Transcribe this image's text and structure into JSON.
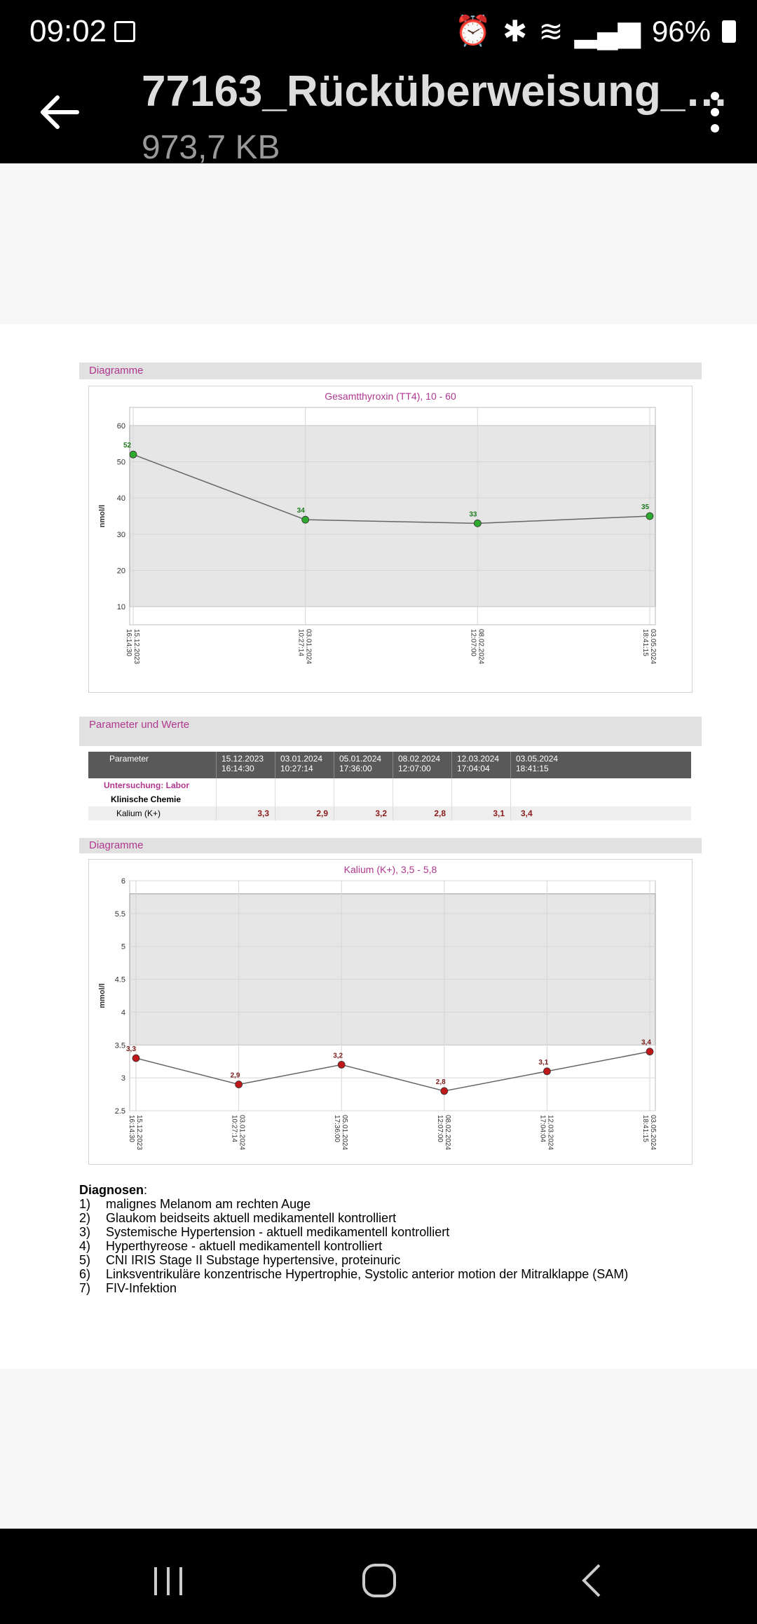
{
  "status_bar": {
    "time": "09:02",
    "battery": "96%"
  },
  "app_bar": {
    "title": "77163_Rücküberweisung_…",
    "size": "973,7 KB"
  },
  "sections": {
    "charts": "Diagramme",
    "params": "Parameter und Werte",
    "charts2": "Diagramme"
  },
  "chart_data": [
    {
      "type": "line",
      "title": "Gesamtthyroxin (TT4), 10 - 60",
      "ylabel": "nmol/l",
      "ylim": [
        5,
        65
      ],
      "yticks": [
        10,
        20,
        30,
        40,
        50,
        60
      ],
      "normal_range": [
        10,
        60
      ],
      "x": [
        "15.12.2023 16:14:30",
        "03.01.2024 10:27:14",
        "08.02.2024 12:07:00",
        "03.05.2024 18:41:15"
      ],
      "xdate": [
        "15.12.2023",
        "03.01.2024",
        "08.02.2024",
        "03.05.2024"
      ],
      "xtime": [
        "16:14:30",
        "10:27:14",
        "12:07:00",
        "18:41:15"
      ],
      "values": [
        52,
        34,
        33,
        35
      ],
      "point_labels": [
        "52",
        "34",
        "33",
        "35"
      ],
      "colors": {
        "point": "#2eaa2e",
        "label": "#1e7a1e"
      }
    },
    {
      "type": "line",
      "title": "Kalium (K+), 3,5 - 5,8",
      "ylabel": "mmol/l",
      "ylim": [
        2.5,
        6
      ],
      "yticks": [
        "2.5",
        "3",
        "3.5",
        "4",
        "4.5",
        "5",
        "5.5",
        "6"
      ],
      "normal_range": [
        3.5,
        5.8
      ],
      "x": [
        "15.12.2023 16:14:30",
        "03.01.2024 10:27:14",
        "05.01.2024 17:36:00",
        "08.02.2024 12:07:00",
        "12.03.2024 17:04:04",
        "03.05.2024 18:41:15"
      ],
      "xdate": [
        "15.12.2023",
        "03.01.2024",
        "05.01.2024",
        "08.02.2024",
        "12.03.2024",
        "03.05.2024"
      ],
      "xtime": [
        "16:14:30",
        "10:27:14",
        "17:36:00",
        "12:07:00",
        "17:04:04",
        "18:41:15"
      ],
      "values": [
        3.3,
        2.9,
        3.2,
        2.8,
        3.1,
        3.4
      ],
      "point_labels": [
        "3,3",
        "2,9",
        "3,2",
        "2,8",
        "3,1",
        "3,4"
      ],
      "colors": {
        "point": "#c0181a",
        "label": "#7a1a1a"
      }
    }
  ],
  "table": {
    "header": "Parameter",
    "columns": [
      {
        "date": "15.12.2023",
        "time": "16:14:30"
      },
      {
        "date": "03.01.2024",
        "time": "10:27:14"
      },
      {
        "date": "05.01.2024",
        "time": "17:36:00"
      },
      {
        "date": "08.02.2024",
        "time": "12:07:00"
      },
      {
        "date": "12.03.2024",
        "time": "17:04:04"
      },
      {
        "date": "03.05.2024",
        "time": "18:41:15"
      }
    ],
    "exam": "Untersuchung: Labor",
    "group": "Klinische Chemie",
    "row_label": "Kalium (K+)",
    "values": [
      "3,3",
      "2,9",
      "3,2",
      "2,8",
      "3,1",
      "3,4"
    ]
  },
  "diagnoses": {
    "heading": "Diagnosen",
    "colon": ":",
    "items": [
      {
        "num": "1)",
        "text": "malignes Melanom am rechten Auge"
      },
      {
        "num": "2)",
        "text": "Glaukom beidseits aktuell medikamentell kontrolliert"
      },
      {
        "num": "3)",
        "text": "Systemische Hypertension - aktuell medikamentell kontrolliert"
      },
      {
        "num": "4)",
        "text": "Hyperthyreose - aktuell medikamentell kontrolliert"
      },
      {
        "num": "5)",
        "text": "CNI IRIS Stage II Substage hypertensive, proteinuric"
      },
      {
        "num": "6)",
        "text": "Linksventrikuläre konzentrische Hypertrophie, Systolic anterior motion der Mitralklappe (SAM)"
      },
      {
        "num": "7)",
        "text": "FIV-Infektion"
      }
    ]
  }
}
